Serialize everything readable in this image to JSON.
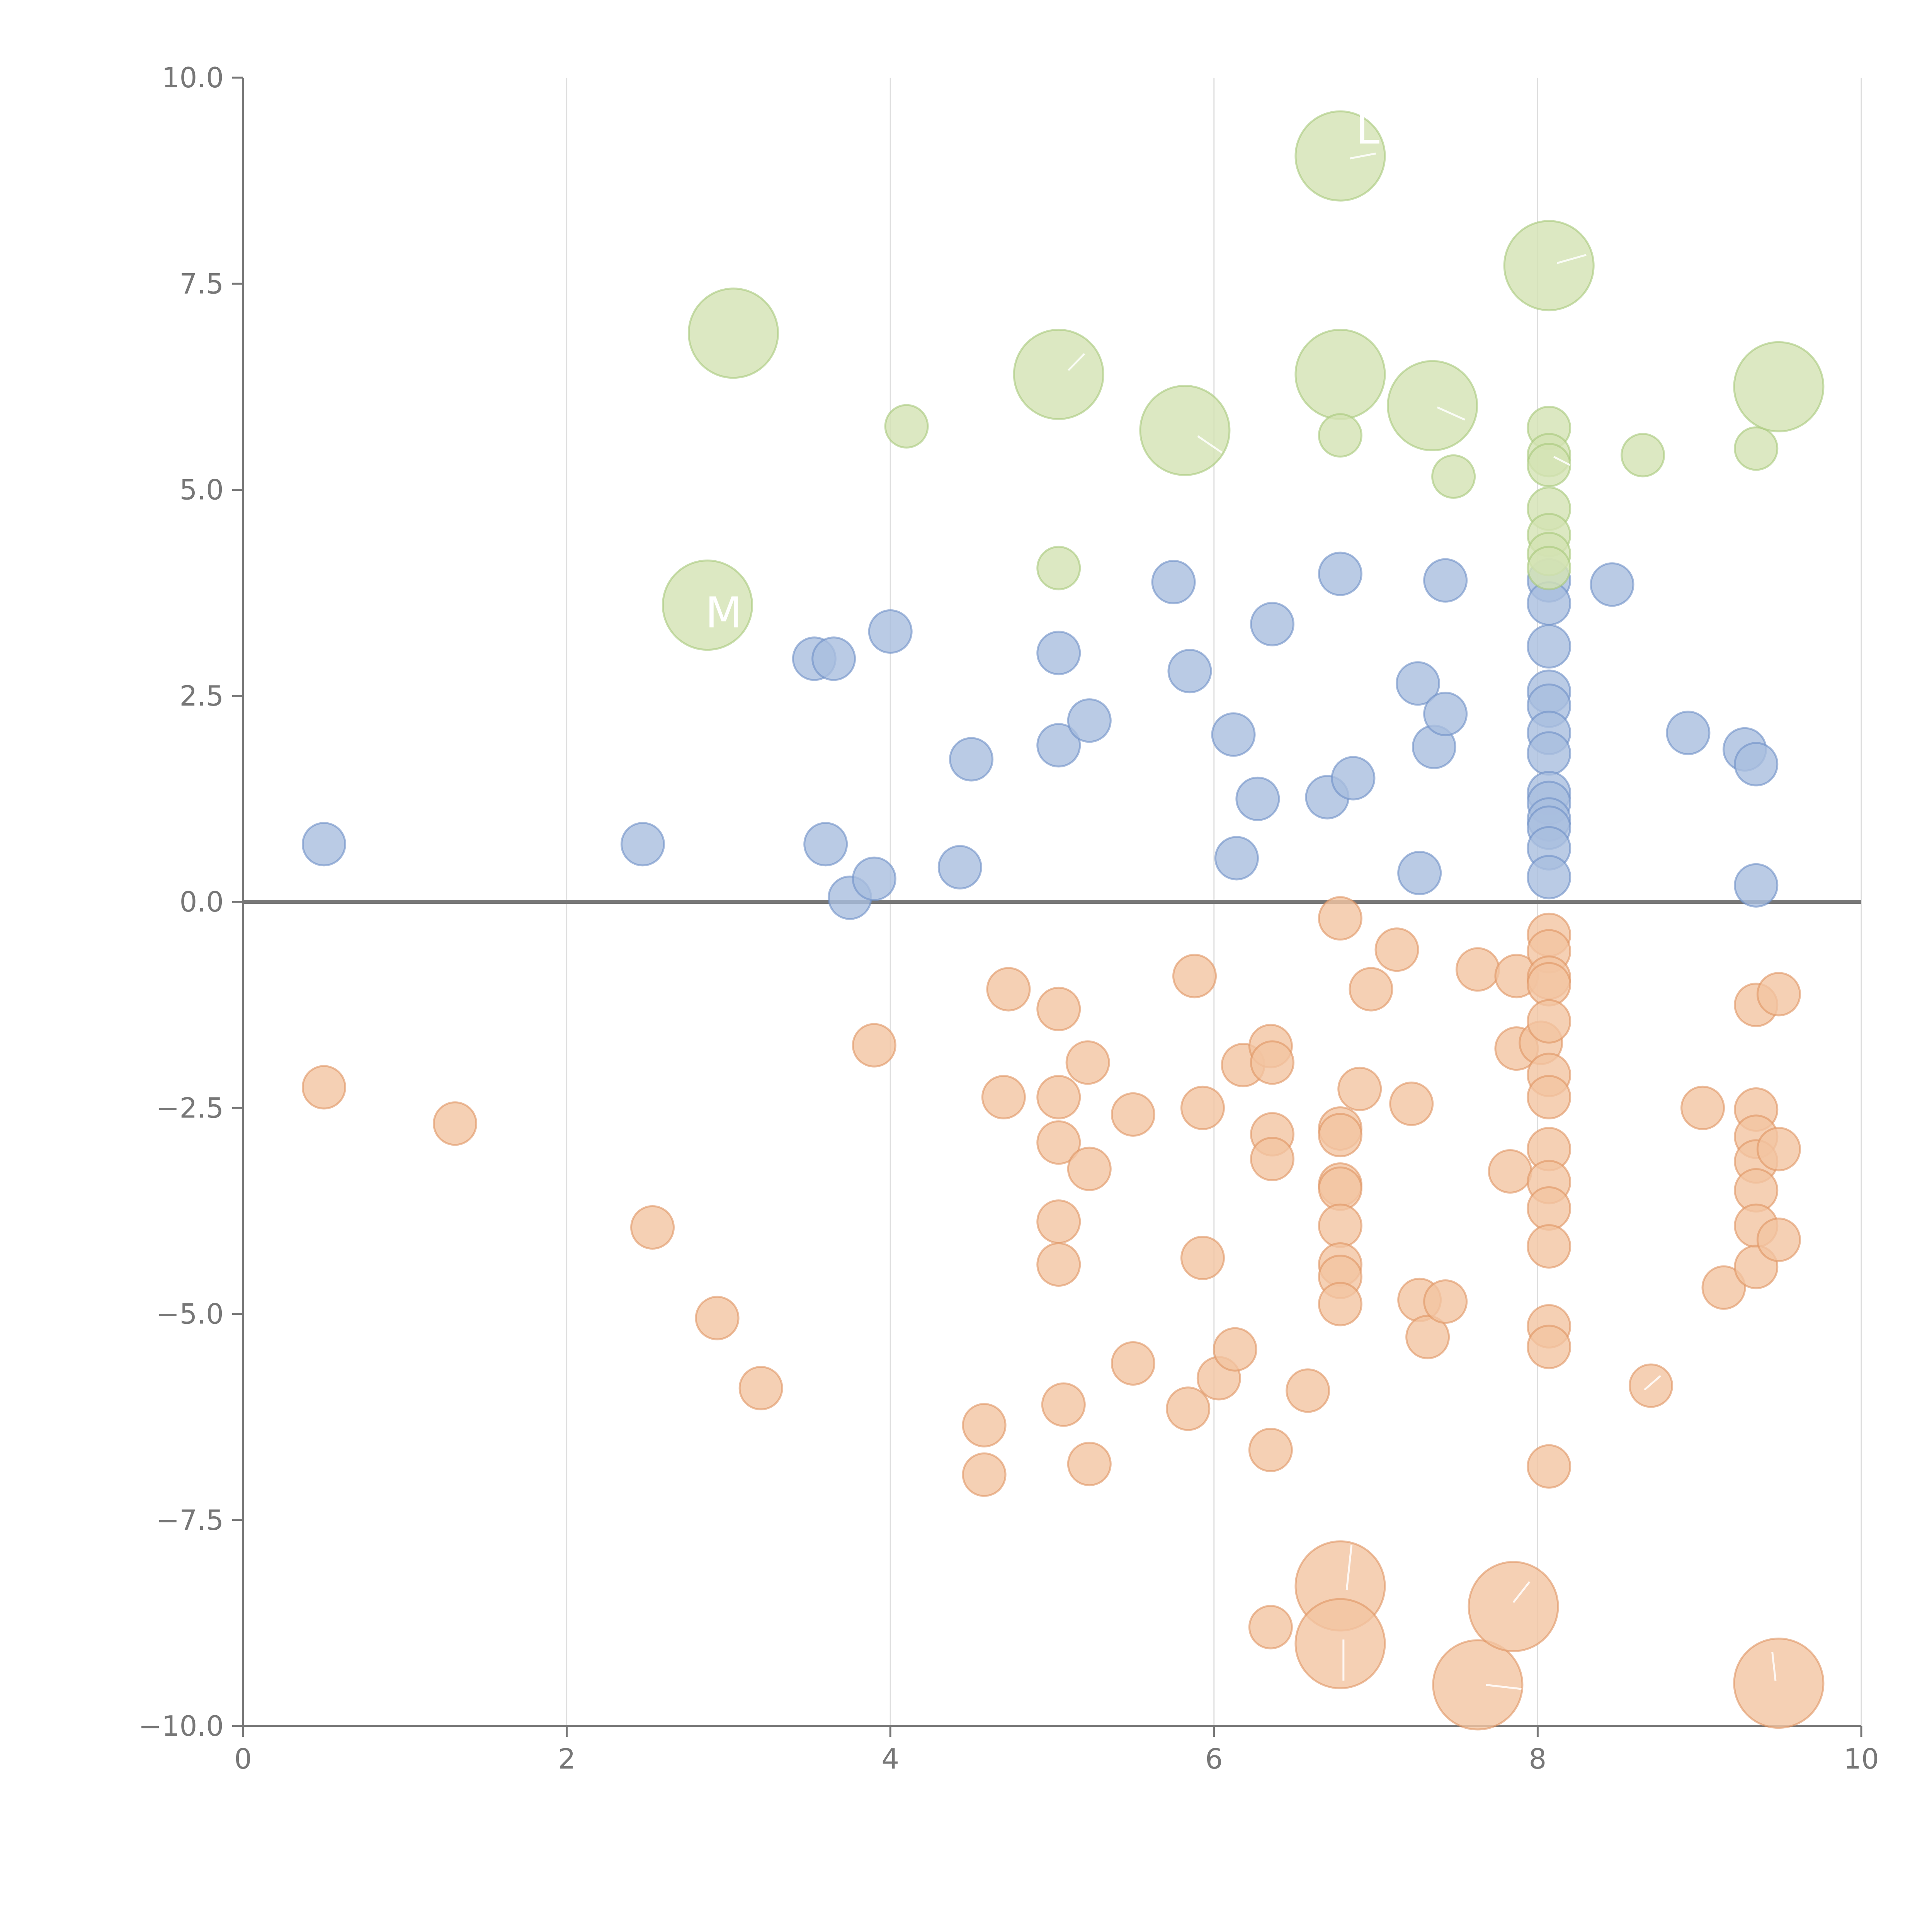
{
  "chart_data": {
    "type": "scatter",
    "title": "",
    "xlabel": "",
    "ylabel": "",
    "xlim": [
      0,
      10
    ],
    "ylim": [
      -10,
      10
    ],
    "grid": {
      "x": true,
      "y": false
    },
    "zero_line": true,
    "x_ticks": [
      "0",
      "2",
      "4",
      "6",
      "8",
      "10"
    ],
    "y_ticks": [
      "10.0",
      "7.5",
      "5.0",
      "2.5",
      "0.0",
      "−2.5",
      "−5.0",
      "−7.5",
      "−10.0"
    ],
    "x_tick_values": [
      0,
      2,
      4,
      6,
      8,
      10
    ],
    "y_tick_values": [
      10,
      7.5,
      5,
      2.5,
      0,
      -2.5,
      -5,
      -7.5,
      -10
    ],
    "size_levels": {
      "small": 1,
      "medium": 1.15,
      "large": 2.1
    },
    "series": [
      {
        "color": "#a9bedf",
        "stroke": "#6e8fc6",
        "points": [
          [
            0.5,
            0.7,
            "s"
          ],
          [
            2.47,
            0.7,
            "s"
          ],
          [
            3.53,
            2.95,
            "s"
          ],
          [
            3.65,
            2.95,
            "s"
          ],
          [
            3.6,
            0.7,
            "s"
          ],
          [
            3.75,
            0.05,
            "s"
          ],
          [
            3.9,
            0.28,
            "s"
          ],
          [
            4.0,
            3.28,
            "s"
          ],
          [
            4.43,
            0.42,
            "s"
          ],
          [
            4.5,
            1.73,
            "s"
          ],
          [
            5.04,
            3.02,
            "s"
          ],
          [
            5.04,
            1.9,
            "s"
          ],
          [
            5.23,
            2.2,
            "s"
          ],
          [
            5.75,
            3.88,
            "s"
          ],
          [
            5.85,
            2.8,
            "s"
          ],
          [
            6.12,
            2.03,
            "s"
          ],
          [
            6.14,
            0.53,
            "s"
          ],
          [
            6.27,
            1.25,
            "s"
          ],
          [
            6.36,
            3.37,
            "s"
          ],
          [
            6.7,
            1.27,
            "s"
          ],
          [
            6.78,
            3.98,
            "s"
          ],
          [
            6.86,
            1.5,
            "s"
          ],
          [
            7.26,
            2.65,
            "s"
          ],
          [
            7.27,
            0.35,
            "s"
          ],
          [
            7.36,
            1.88,
            "s"
          ],
          [
            7.43,
            3.9,
            "s"
          ],
          [
            7.43,
            2.28,
            "s"
          ],
          [
            8.07,
            3.9,
            "s"
          ],
          [
            8.07,
            3.62,
            "s"
          ],
          [
            8.07,
            3.1,
            "s"
          ],
          [
            8.07,
            2.55,
            "s"
          ],
          [
            8.07,
            2.38,
            "s"
          ],
          [
            8.07,
            2.05,
            "s"
          ],
          [
            8.07,
            1.8,
            "s"
          ],
          [
            8.07,
            1.32,
            "s"
          ],
          [
            8.07,
            1.2,
            "s"
          ],
          [
            8.07,
            1.0,
            "s"
          ],
          [
            8.07,
            0.9,
            "s"
          ],
          [
            8.07,
            0.65,
            "s"
          ],
          [
            8.07,
            0.3,
            "s"
          ],
          [
            8.46,
            3.85,
            "s"
          ],
          [
            8.93,
            2.05,
            "s"
          ],
          [
            9.28,
            1.85,
            "s"
          ],
          [
            9.35,
            1.67,
            "s"
          ],
          [
            9.35,
            0.2,
            "s"
          ]
        ]
      },
      {
        "color": "#f2c4a1",
        "stroke": "#e09563",
        "points": [
          [
            0.5,
            -2.25,
            "s"
          ],
          [
            1.31,
            -2.69,
            "s"
          ],
          [
            2.53,
            -3.95,
            "s"
          ],
          [
            2.93,
            -5.05,
            "s"
          ],
          [
            3.2,
            -5.9,
            "s"
          ],
          [
            3.9,
            -1.74,
            "s"
          ],
          [
            4.58,
            -6.35,
            "s"
          ],
          [
            4.58,
            -6.95,
            "s"
          ],
          [
            4.7,
            -2.37,
            "s"
          ],
          [
            4.73,
            -1.06,
            "s"
          ],
          [
            5.04,
            -1.3,
            "s"
          ],
          [
            5.04,
            -2.37,
            "s"
          ],
          [
            5.04,
            -2.92,
            "s"
          ],
          [
            5.04,
            -3.88,
            "s"
          ],
          [
            5.04,
            -4.4,
            "s"
          ],
          [
            5.07,
            -6.1,
            "s"
          ],
          [
            5.22,
            -1.95,
            "s"
          ],
          [
            5.23,
            -3.24,
            "s"
          ],
          [
            5.23,
            -6.82,
            "s"
          ],
          [
            5.5,
            -2.58,
            "s"
          ],
          [
            5.5,
            -5.6,
            "s"
          ],
          [
            5.84,
            -6.15,
            "s"
          ],
          [
            5.88,
            -0.9,
            "s"
          ],
          [
            5.93,
            -2.5,
            "s"
          ],
          [
            5.93,
            -4.32,
            "s"
          ],
          [
            6.03,
            -5.78,
            "s"
          ],
          [
            6.13,
            -5.43,
            "s"
          ],
          [
            6.18,
            -1.98,
            "s"
          ],
          [
            6.35,
            -1.75,
            "s"
          ],
          [
            6.36,
            -1.95,
            "s"
          ],
          [
            6.36,
            -2.82,
            "s"
          ],
          [
            6.36,
            -3.12,
            "s"
          ],
          [
            6.35,
            -6.65,
            "s"
          ],
          [
            6.35,
            -8.8,
            "s"
          ],
          [
            6.58,
            -5.93,
            "s"
          ],
          [
            6.78,
            -0.2,
            "s"
          ],
          [
            6.78,
            -2.75,
            "s"
          ],
          [
            6.78,
            -2.83,
            "s"
          ],
          [
            6.78,
            -3.43,
            "s"
          ],
          [
            6.78,
            -3.48,
            "s"
          ],
          [
            6.78,
            -3.93,
            "s"
          ],
          [
            6.78,
            -4.4,
            "s"
          ],
          [
            6.78,
            -4.55,
            "s"
          ],
          [
            6.78,
            -4.88,
            "s"
          ],
          [
            6.78,
            -8.3,
            "l"
          ],
          [
            6.78,
            -9.0,
            "l"
          ],
          [
            6.9,
            -2.27,
            "s"
          ],
          [
            6.97,
            -1.06,
            "s"
          ],
          [
            7.13,
            -0.58,
            "s"
          ],
          [
            7.22,
            -2.45,
            "s"
          ],
          [
            7.27,
            -4.83,
            "s"
          ],
          [
            7.32,
            -5.28,
            "s"
          ],
          [
            7.43,
            -4.85,
            "s"
          ],
          [
            7.63,
            -9.5,
            "l"
          ],
          [
            7.63,
            -0.82,
            "s"
          ],
          [
            7.83,
            -3.27,
            "s"
          ],
          [
            7.85,
            -8.55,
            "l"
          ],
          [
            7.87,
            -0.9,
            "s"
          ],
          [
            7.87,
            -1.78,
            "s"
          ],
          [
            8.02,
            -1.71,
            "s"
          ],
          [
            8.07,
            -0.4,
            "s"
          ],
          [
            8.07,
            -0.6,
            "s"
          ],
          [
            8.07,
            -0.92,
            "s"
          ],
          [
            8.07,
            -1.0,
            "s"
          ],
          [
            8.07,
            -1.45,
            "s"
          ],
          [
            8.07,
            -2.1,
            "s"
          ],
          [
            8.07,
            -2.37,
            "s"
          ],
          [
            8.07,
            -3.0,
            "s"
          ],
          [
            8.07,
            -3.4,
            "s"
          ],
          [
            8.07,
            -3.72,
            "s"
          ],
          [
            8.07,
            -4.18,
            "s"
          ],
          [
            8.07,
            -5.15,
            "s"
          ],
          [
            8.07,
            -5.4,
            "s"
          ],
          [
            8.07,
            -6.85,
            "s"
          ],
          [
            8.7,
            -5.87,
            "s"
          ],
          [
            9.02,
            -2.5,
            "s"
          ],
          [
            9.15,
            -4.68,
            "s"
          ],
          [
            9.35,
            -1.25,
            "s"
          ],
          [
            9.35,
            -2.52,
            "s"
          ],
          [
            9.35,
            -2.85,
            "s"
          ],
          [
            9.35,
            -3.15,
            "s"
          ],
          [
            9.35,
            -3.5,
            "s"
          ],
          [
            9.35,
            -3.93,
            "s"
          ],
          [
            9.35,
            -4.43,
            "s"
          ],
          [
            9.49,
            -1.12,
            "s"
          ],
          [
            9.49,
            -3.0,
            "s"
          ],
          [
            9.49,
            -4.1,
            "s"
          ],
          [
            9.49,
            -9.48,
            "l"
          ]
        ]
      },
      {
        "color": "#d3e2b3",
        "stroke": "#a7c87a",
        "points": [
          [
            2.87,
            3.6,
            "l"
          ],
          [
            3.03,
            6.9,
            "l"
          ],
          [
            4.1,
            5.77,
            "s"
          ],
          [
            5.04,
            6.4,
            "l"
          ],
          [
            5.04,
            4.05,
            "s"
          ],
          [
            5.82,
            5.72,
            "l"
          ],
          [
            6.78,
            9.05,
            "l"
          ],
          [
            6.78,
            6.4,
            "l"
          ],
          [
            6.78,
            5.66,
            "s"
          ],
          [
            7.35,
            6.02,
            "l"
          ],
          [
            7.48,
            5.16,
            "s"
          ],
          [
            8.07,
            7.72,
            "l"
          ],
          [
            8.07,
            5.75,
            "s"
          ],
          [
            8.07,
            5.42,
            "s"
          ],
          [
            8.07,
            5.3,
            "s"
          ],
          [
            8.07,
            4.77,
            "s"
          ],
          [
            8.07,
            4.45,
            "s"
          ],
          [
            8.07,
            4.22,
            "s"
          ],
          [
            8.07,
            4.05,
            "s"
          ],
          [
            8.65,
            5.42,
            "s"
          ],
          [
            9.35,
            5.5,
            "s"
          ],
          [
            9.49,
            6.25,
            "l"
          ]
        ]
      }
    ],
    "annotations": [
      {
        "text": "M",
        "x": 2.97,
        "y": 3.33
      },
      {
        "text": "L",
        "x": 6.95,
        "y": 9.2
      }
    ],
    "leader_lines": [
      [
        6.84,
        9.02,
        7.0,
        9.08
      ],
      [
        8.12,
        7.75,
        8.3,
        7.85
      ],
      [
        5.1,
        6.45,
        5.2,
        6.65
      ],
      [
        5.9,
        5.65,
        6.05,
        5.45
      ],
      [
        7.38,
        6.0,
        7.55,
        5.85
      ],
      [
        8.1,
        5.4,
        8.2,
        5.3
      ],
      [
        6.82,
        -8.35,
        6.85,
        -7.8
      ],
      [
        6.8,
        -8.95,
        6.8,
        -9.45
      ],
      [
        7.68,
        -9.5,
        7.9,
        -9.55
      ],
      [
        7.85,
        -8.5,
        7.95,
        -8.25
      ],
      [
        8.66,
        -5.92,
        8.76,
        -5.75
      ],
      [
        9.47,
        -9.45,
        9.45,
        -9.1
      ]
    ]
  }
}
